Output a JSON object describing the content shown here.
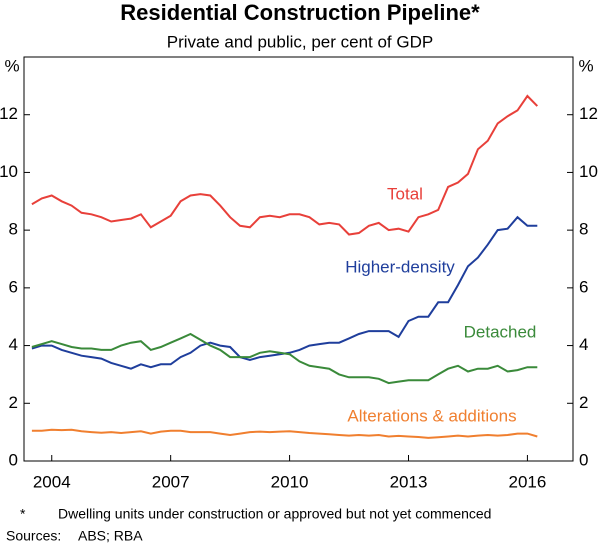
{
  "chart_data": {
    "type": "line",
    "title": "Residential Construction Pipeline*",
    "subtitle": "Private and public, per cent of GDP",
    "y_unit": "%",
    "x": [
      2003.5,
      2003.75,
      2004,
      2004.25,
      2004.5,
      2004.75,
      2005,
      2005.25,
      2005.5,
      2005.75,
      2006,
      2006.25,
      2006.5,
      2006.75,
      2007,
      2007.25,
      2007.5,
      2007.75,
      2008,
      2008.25,
      2008.5,
      2008.75,
      2009,
      2009.25,
      2009.5,
      2009.75,
      2010,
      2010.25,
      2010.5,
      2010.75,
      2011,
      2011.25,
      2011.5,
      2011.75,
      2012,
      2012.25,
      2012.5,
      2012.75,
      2013,
      2013.25,
      2013.5,
      2013.75,
      2014,
      2014.25,
      2014.5,
      2014.75,
      2015,
      2015.25,
      2015.5,
      2015.75,
      2016,
      2016.25
    ],
    "series": [
      {
        "name": "Total",
        "color": "#e8403a",
        "values": [
          8.9,
          9.1,
          9.2,
          9.0,
          8.85,
          8.6,
          8.55,
          8.45,
          8.3,
          8.35,
          8.4,
          8.55,
          8.1,
          8.3,
          8.5,
          9.0,
          9.2,
          9.25,
          9.2,
          8.85,
          8.45,
          8.15,
          8.1,
          8.45,
          8.5,
          8.45,
          8.55,
          8.55,
          8.45,
          8.2,
          8.25,
          8.2,
          7.85,
          7.9,
          8.15,
          8.25,
          8.0,
          8.05,
          7.95,
          8.45,
          8.55,
          8.7,
          9.5,
          9.65,
          9.95,
          10.8,
          11.1,
          11.7,
          11.95,
          12.15,
          12.65,
          12.3
        ]
      },
      {
        "name": "Higher-density",
        "color": "#1f3e9c",
        "values": [
          3.9,
          4.0,
          4.0,
          3.85,
          3.75,
          3.65,
          3.6,
          3.55,
          3.4,
          3.3,
          3.2,
          3.35,
          3.25,
          3.35,
          3.35,
          3.6,
          3.75,
          4.0,
          4.1,
          4.0,
          3.95,
          3.6,
          3.5,
          3.6,
          3.65,
          3.7,
          3.75,
          3.85,
          4.0,
          4.05,
          4.1,
          4.1,
          4.25,
          4.4,
          4.5,
          4.5,
          4.5,
          4.3,
          4.85,
          5.0,
          5.0,
          5.5,
          5.5,
          6.1,
          6.75,
          7.05,
          7.5,
          8.0,
          8.05,
          8.45,
          8.15,
          8.15
        ]
      },
      {
        "name": "Detached",
        "color": "#3a8a3a",
        "values": [
          3.95,
          4.05,
          4.15,
          4.05,
          3.95,
          3.9,
          3.9,
          3.85,
          3.85,
          4.0,
          4.1,
          4.15,
          3.85,
          3.95,
          4.1,
          4.25,
          4.4,
          4.2,
          4.0,
          3.85,
          3.6,
          3.6,
          3.6,
          3.75,
          3.8,
          3.75,
          3.7,
          3.45,
          3.3,
          3.25,
          3.2,
          3.0,
          2.9,
          2.9,
          2.9,
          2.85,
          2.7,
          2.75,
          2.8,
          2.8,
          2.8,
          3.0,
          3.2,
          3.3,
          3.1,
          3.2,
          3.2,
          3.3,
          3.1,
          3.15,
          3.25,
          3.25
        ]
      },
      {
        "name": "Alterations & additions",
        "color": "#f07f2f",
        "values": [
          1.05,
          1.05,
          1.08,
          1.07,
          1.08,
          1.03,
          1.0,
          0.98,
          1.0,
          0.97,
          1.0,
          1.03,
          0.95,
          1.02,
          1.05,
          1.05,
          1.0,
          1.0,
          1.0,
          0.95,
          0.9,
          0.95,
          1.0,
          1.02,
          1.0,
          1.02,
          1.03,
          1.0,
          0.97,
          0.95,
          0.93,
          0.9,
          0.88,
          0.9,
          0.88,
          0.9,
          0.85,
          0.87,
          0.85,
          0.83,
          0.8,
          0.82,
          0.85,
          0.88,
          0.85,
          0.88,
          0.9,
          0.88,
          0.9,
          0.95,
          0.95,
          0.85
        ]
      }
    ],
    "xlim": [
      2003.3,
      2017.15
    ],
    "xticks": [
      2004,
      2007,
      2010,
      2013,
      2016
    ],
    "ylim": [
      0,
      14
    ],
    "yticks": [
      0,
      2,
      4,
      6,
      8,
      10,
      12
    ],
    "grid": false,
    "note_marker": "*",
    "note": "Dwelling units under construction or approved but not yet commenced",
    "sources_label": "Sources:",
    "sources": "ABS; RBA"
  }
}
